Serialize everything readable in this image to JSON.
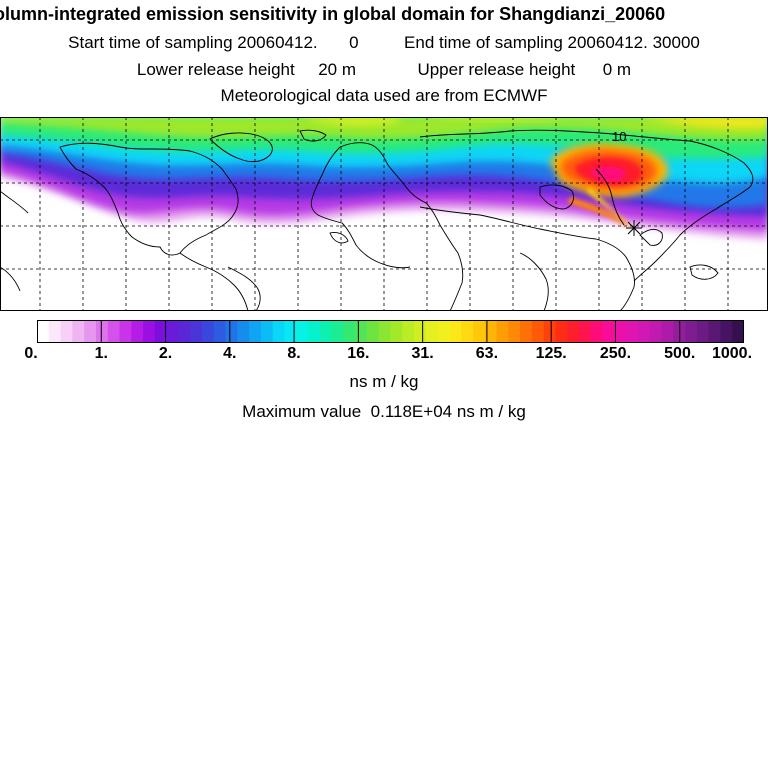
{
  "header": {
    "title": "olumn-integrated emission sensitivity in global domain for Shangdianzi_20060",
    "start_label": "Start time of sampling 20060412.",
    "start_value": "0",
    "end_label": "End time of sampling 20060412. 30000",
    "lower_label": "Lower release height",
    "lower_value": "20 m",
    "upper_label": "Upper release height",
    "upper_value": "0 m",
    "met_source": "Meteorological data used are from ECMWF"
  },
  "map": {
    "grid_label": "10",
    "receptor": "Shangdianzi"
  },
  "colorbar": {
    "tick_labels": [
      "0.",
      "1.",
      "2.",
      "4.",
      "8.",
      "16.",
      "31.",
      "63.",
      "125.",
      "250.",
      "500.",
      "1000."
    ],
    "colors": [
      "#ffffff",
      "#fbe8fb",
      "#f6d0f7",
      "#efb4f2",
      "#e796ef",
      "#de74ec",
      "#d552ea",
      "#c934e8",
      "#b51de6",
      "#9a10e2",
      "#7d0fde",
      "#6a1ad9",
      "#5b26d6",
      "#4b34d8",
      "#3b46dc",
      "#2d5ce2",
      "#2074e8",
      "#168ced",
      "#10a4f2",
      "#0cbcf6",
      "#0ad6f8",
      "#08e8f4",
      "#06f2e4",
      "#06f2cc",
      "#0cf0b0",
      "#1cec92",
      "#34e872",
      "#52e456",
      "#6ee440",
      "#8ae632",
      "#a4e82a",
      "#bcec26",
      "#d2ee22",
      "#e4f020",
      "#f2f01c",
      "#fce818",
      "#ffda10",
      "#ffc80a",
      "#ffb406",
      "#ff9e04",
      "#ff8804",
      "#ff7006",
      "#ff5a08",
      "#ff420c",
      "#ff2c14",
      "#ff1e2c",
      "#ff1450",
      "#ff0c7a",
      "#f80c9a",
      "#ec10aa",
      "#e014b2",
      "#d218b4",
      "#c01ab0",
      "#ac1ca8",
      "#961c9e",
      "#801c92",
      "#6c1a84",
      "#581874",
      "#461462",
      "#36104e"
    ],
    "units": "ns m / kg",
    "max_label": "Maximum value",
    "max_value": "0.118E+04",
    "max_units": "ns m / kg"
  }
}
